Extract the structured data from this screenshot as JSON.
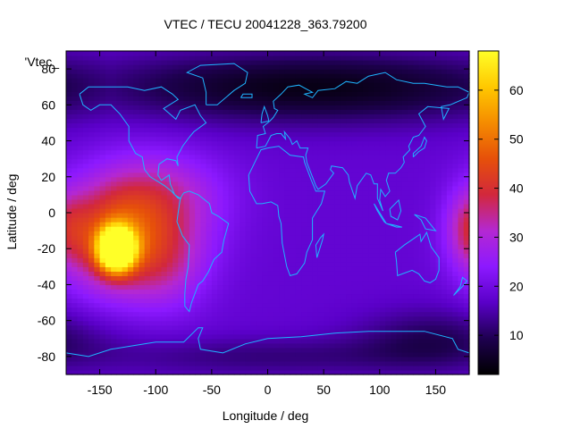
{
  "chart_data": {
    "type": "heatmap",
    "title": "VTEC / TECU 20041228_363.79200",
    "xlabel": "Longitude / deg",
    "ylabel": "Latitude / deg",
    "series_label": "'Vtec_",
    "xlim": [
      -180,
      180
    ],
    "ylim": [
      -90,
      90
    ],
    "x_ticks": [
      -150,
      -100,
      -50,
      0,
      50,
      100,
      150
    ],
    "y_ticks": [
      -80,
      -60,
      -40,
      -20,
      0,
      20,
      40,
      60,
      80
    ],
    "colorbar": {
      "range": [
        2,
        68
      ],
      "ticks": [
        10,
        20,
        30,
        40,
        50,
        60
      ],
      "colormap": [
        "#000000",
        "#1e0050",
        "#5a00c8",
        "#8c19ff",
        "#b428d2",
        "#d2283c",
        "#e6500a",
        "#f58c00",
        "#ffc800",
        "#ffff28"
      ]
    },
    "coastline_color": "#1eb4ff",
    "grid_resolution_deg": {
      "lon": 5,
      "lat": 2.5
    },
    "field": {
      "base": 18,
      "features": [
        {
          "lon": -135,
          "lat": -20,
          "peak": 66,
          "lon_width": 11,
          "lat_width": 8
        },
        {
          "lon": -140,
          "lat": -15,
          "peak": 19,
          "lon_width": 30,
          "lat_width": 22
        },
        {
          "lon": -105,
          "lat": -5,
          "peak": 14,
          "lon_width": 40,
          "lat_width": 24
        },
        {
          "lon": -90,
          "lat": -30,
          "peak": 8,
          "lon_width": 25,
          "lat_width": 18
        },
        {
          "lon": -90,
          "lat": 12,
          "peak": 6,
          "lon_width": 40,
          "lat_width": 15
        },
        {
          "lon": 180,
          "lat": -8,
          "peak": 12,
          "lon_width": 15,
          "lat_width": 15
        },
        {
          "lon": 40,
          "lat": 70,
          "peak": -14,
          "lon_width": 140,
          "lat_width": 14
        },
        {
          "lon": 0,
          "lat": -80,
          "peak": -6,
          "lon_width": 110,
          "lat_width": 8
        },
        {
          "lon": 150,
          "lat": -70,
          "peak": -8,
          "lon_width": 50,
          "lat_width": 12
        }
      ]
    }
  }
}
